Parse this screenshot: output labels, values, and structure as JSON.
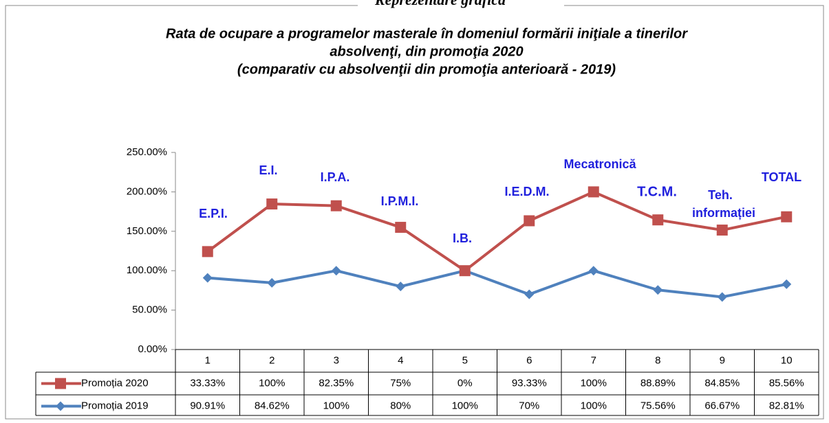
{
  "page_title": "Reprezentare grafică",
  "chart_data": {
    "type": "line",
    "stacked": true,
    "title": [
      "Rata de ocupare a programelor masterale în domeniul formării iniţiale a tinerilor",
      "absolvenţi, din promoţia 2020",
      "(comparativ cu absolvenţii din promoţia anterioară - 2019)"
    ],
    "categories": [
      "1",
      "2",
      "3",
      "4",
      "5",
      "6",
      "7",
      "8",
      "9",
      "10"
    ],
    "annotations": [
      [
        "E.P.I."
      ],
      [
        "E.I."
      ],
      [
        "I.P.A."
      ],
      [
        "I.P.M.I."
      ],
      [
        "I.B."
      ],
      [
        "I.E.D.M."
      ],
      [
        "Mecatronică"
      ],
      [
        "T.C.M."
      ],
      [
        "Teh.",
        "informației"
      ],
      [
        "TOTAL"
      ]
    ],
    "series": [
      {
        "name": "Promoția 2019",
        "color": "#4f81bd",
        "marker": "diamond",
        "values": [
          90.91,
          84.62,
          100,
          80,
          100,
          70,
          100,
          75.56,
          66.67,
          82.81
        ],
        "value_labels": [
          "90.91%",
          "84.62%",
          "100%",
          "80%",
          "100%",
          "70%",
          "100%",
          "75.56%",
          "66.67%",
          "82.81%"
        ]
      },
      {
        "name": "Promoția 2020",
        "color": "#c0504d",
        "marker": "square",
        "values": [
          33.33,
          100,
          82.35,
          75,
          0,
          93.33,
          100,
          88.89,
          84.85,
          85.56
        ],
        "value_labels": [
          "33.33%",
          "100%",
          "82.35%",
          "75%",
          "0%",
          "93.33%",
          "100%",
          "88.89%",
          "84.85%",
          "85.56%"
        ]
      }
    ],
    "ylim": [
      0,
      250
    ],
    "yticks": [
      {
        "value": 0,
        "label": "0.00%"
      },
      {
        "value": 50,
        "label": "50.00%"
      },
      {
        "value": 100,
        "label": "100.00%"
      },
      {
        "value": 150,
        "label": "150.00%"
      },
      {
        "value": 200,
        "label": "200.00%"
      },
      {
        "value": 250,
        "label": "250.00%"
      }
    ],
    "data_table": true
  }
}
